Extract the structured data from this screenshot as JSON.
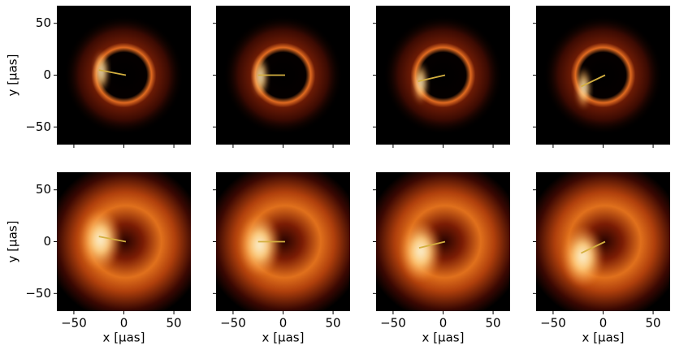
{
  "chart_data": {
    "type": "image-grid",
    "xlabel": "x [μas]",
    "ylabel": "y [μas]",
    "xlim": [
      -67,
      67
    ],
    "ylim": [
      -67,
      67
    ],
    "xticks": [
      {
        "value": -50,
        "label": "−50"
      },
      0,
      50
    ],
    "yticks": [
      {
        "value": -50,
        "label": "−50"
      },
      0,
      50
    ],
    "line_color": "#d4b040",
    "panels": [
      {
        "style": "sharp",
        "line": {
          "x": [
            -25,
            2
          ],
          "y": [
            5,
            0
          ]
        }
      },
      {
        "style": "sharp",
        "line": {
          "x": [
            -25,
            2
          ],
          "y": [
            0,
            0
          ]
        }
      },
      {
        "style": "sharp",
        "line": {
          "x": [
            -25,
            2
          ],
          "y": [
            -6,
            0
          ]
        }
      },
      {
        "style": "sharp",
        "line": {
          "x": [
            -22,
            2
          ],
          "y": [
            -11,
            0
          ]
        }
      },
      {
        "style": "blurred",
        "line": {
          "x": [
            -25,
            2
          ],
          "y": [
            5,
            0
          ]
        }
      },
      {
        "style": "blurred",
        "line": {
          "x": [
            -25,
            2
          ],
          "y": [
            0,
            0
          ]
        }
      },
      {
        "style": "blurred",
        "line": {
          "x": [
            -24,
            2
          ],
          "y": [
            -6,
            0
          ]
        }
      },
      {
        "style": "blurred",
        "line": {
          "x": [
            -22,
            2
          ],
          "y": [
            -11,
            0
          ]
        }
      }
    ]
  }
}
